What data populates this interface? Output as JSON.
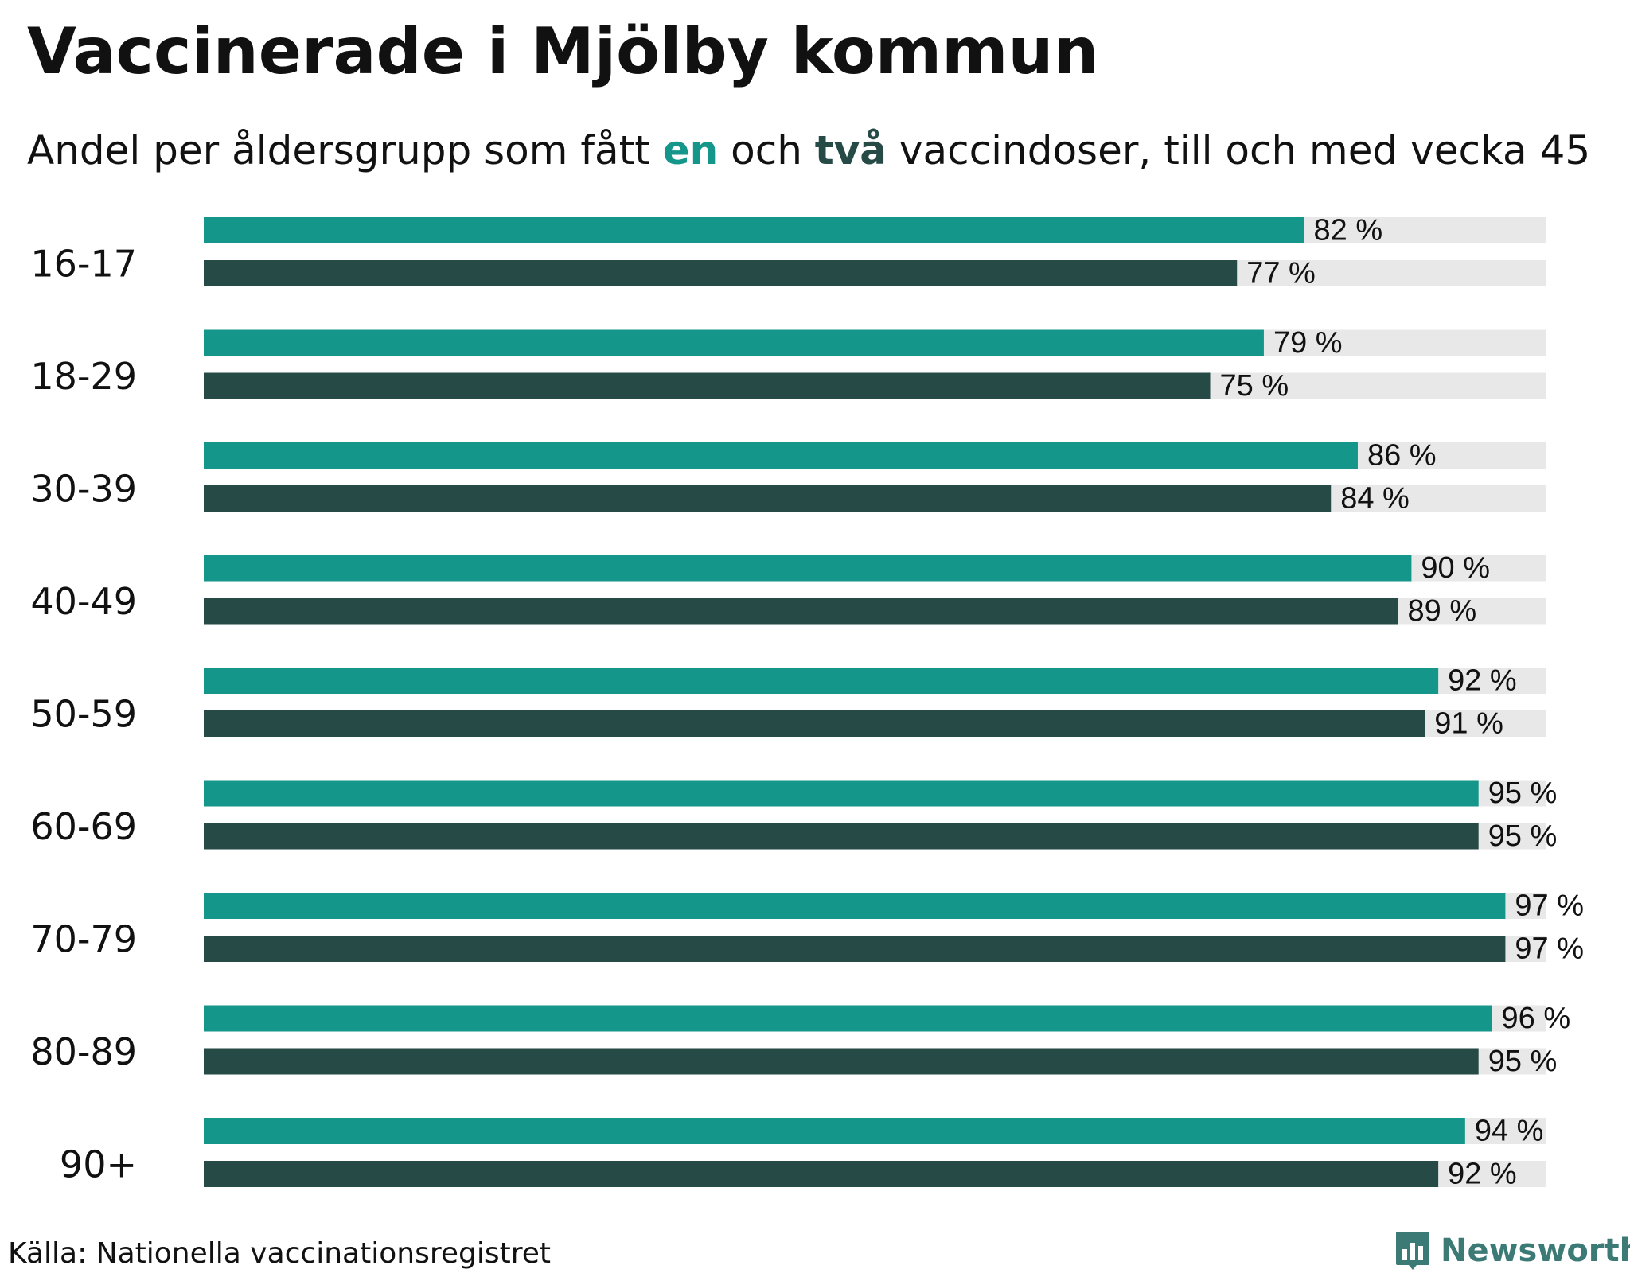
{
  "title": "Vaccinerade i Mjölby kommun",
  "subtitle": {
    "before": "Andel per åldersgrupp som fått ",
    "dose1": "en",
    "middle": " och ",
    "dose2": "två",
    "after": " vaccindoser, till och med vecka 45"
  },
  "source": "Källa: Nationella vaccinationsregistret",
  "logo": {
    "text": "Newsworthy",
    "icon": "bar-chart-icon"
  },
  "colors": {
    "dose1": "#14968a",
    "dose2": "#264a45",
    "track": "#e8e8e8"
  },
  "chart_data": {
    "type": "bar",
    "orientation": "horizontal",
    "title": "Vaccinerade i Mjölby kommun",
    "xlim": [
      0,
      100
    ],
    "value_suffix": " %",
    "categories": [
      "16-17",
      "18-29",
      "30-39",
      "40-49",
      "50-59",
      "60-69",
      "70-79",
      "80-89",
      "90+"
    ],
    "series": [
      {
        "name": "en",
        "values": [
          82,
          79,
          86,
          90,
          92,
          95,
          97,
          96,
          94
        ]
      },
      {
        "name": "två",
        "values": [
          77,
          75,
          84,
          89,
          91,
          95,
          97,
          95,
          92
        ]
      }
    ]
  }
}
